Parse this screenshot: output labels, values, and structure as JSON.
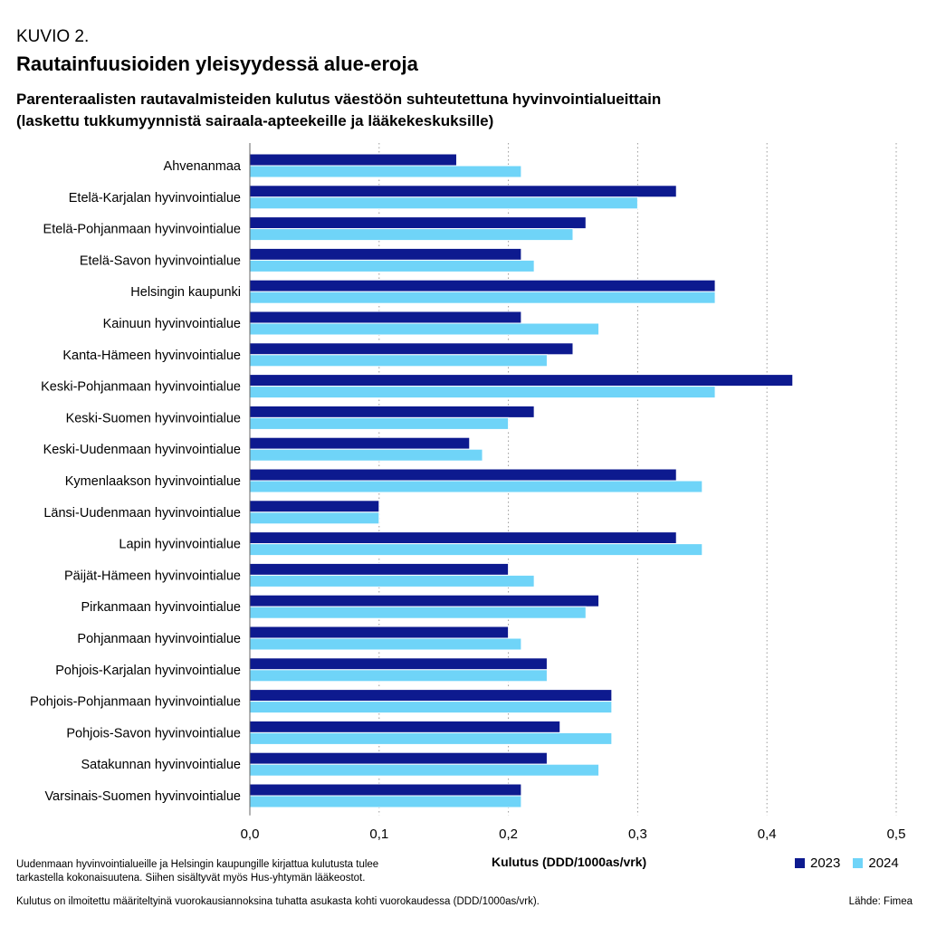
{
  "header": {
    "kuvio": "KUVIO 2.",
    "title": "Rautainfuusioiden yleisyydessä alue-eroja",
    "subtitle_line1": "Parenteraalisten rautavalmisteiden kulutus väestöön suhteutettuna hyvinvointialueittain",
    "subtitle_line2": "(laskettu tukkumyynnistä sairaala-apteekeille ja lääkekeskuksille)"
  },
  "footer": {
    "note1": "Uudenmaan hyvinvointialueille ja Helsingin kaupungille kirjattua kulutusta tulee tarkastella kokonaisuutena. Siihen sisältyvät myös Hus-yhtymän lääkeostot.",
    "note2": "Kulutus on ilmoitettu määriteltyinä vuorokausiannoksina tuhatta asukasta kohti vuorokaudessa (DDD/1000as/vrk).",
    "source": "Lähde: Fimea"
  },
  "chart_data": {
    "type": "bar",
    "orientation": "horizontal",
    "xlabel": "Kulutus (DDD/1000as/vrk)",
    "xlim": [
      0,
      0.5
    ],
    "xticks": [
      0.0,
      0.1,
      0.2,
      0.3,
      0.4,
      0.5
    ],
    "xtick_labels": [
      "0,0",
      "0,1",
      "0,2",
      "0,3",
      "0,4",
      "0,5"
    ],
    "grid": "vertical dotted",
    "legend_position": "bottom-right",
    "categories": [
      "Ahvenanmaa",
      "Etelä-Karjalan hyvinvointialue",
      "Etelä-Pohjanmaan hyvinvointialue",
      "Etelä-Savon hyvinvointialue",
      "Helsingin kaupunki",
      "Kainuun hyvinvointialue",
      "Kanta-Hämeen hyvinvointialue",
      "Keski-Pohjanmaan hyvinvointialue",
      "Keski-Suomen hyvinvointialue",
      "Keski-Uudenmaan hyvinvointialue",
      "Kymenlaakson hyvinvointialue",
      "Länsi-Uudenmaan hyvinvointialue",
      "Lapin hyvinvointialue",
      "Päijät-Hämeen hyvinvointialue",
      "Pirkanmaan hyvinvointialue",
      "Pohjanmaan hyvinvointialue",
      "Pohjois-Karjalan hyvinvointialue",
      "Pohjois-Pohjanmaan hyvinvointialue",
      "Pohjois-Savon hyvinvointialue",
      "Satakunnan hyvinvointialue",
      "Varsinais-Suomen hyvinvointialue"
    ],
    "series": [
      {
        "name": "2023",
        "color": "#0d1a8f",
        "values": [
          0.16,
          0.33,
          0.26,
          0.21,
          0.36,
          0.21,
          0.25,
          0.42,
          0.22,
          0.17,
          0.33,
          0.1,
          0.33,
          0.2,
          0.27,
          0.2,
          0.23,
          0.28,
          0.24,
          0.23,
          0.21
        ]
      },
      {
        "name": "2024",
        "color": "#6fd4f8",
        "values": [
          0.21,
          0.3,
          0.25,
          0.22,
          0.36,
          0.27,
          0.23,
          0.36,
          0.2,
          0.18,
          0.35,
          0.1,
          0.35,
          0.22,
          0.26,
          0.21,
          0.23,
          0.28,
          0.28,
          0.27,
          0.21
        ]
      }
    ]
  }
}
